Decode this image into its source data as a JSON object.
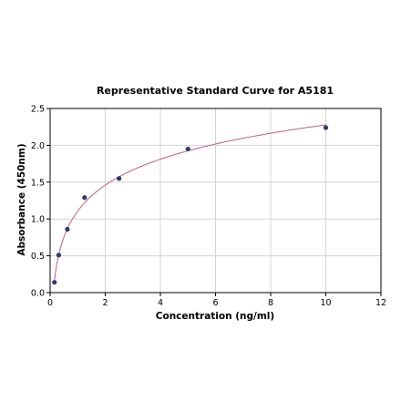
{
  "chart_data": {
    "type": "scatter",
    "title": "Representative Standard Curve for A5181",
    "xlabel": "Concentration (ng/ml)",
    "ylabel": "Absorbance (450nm)",
    "xlim": [
      0,
      12
    ],
    "ylim": [
      0,
      2.5
    ],
    "xticks": [
      0,
      2,
      4,
      6,
      8,
      10,
      12
    ],
    "yticks": [
      0.0,
      0.5,
      1.0,
      1.5,
      2.0,
      2.5
    ],
    "xtick_labels": [
      "0",
      "2",
      "4",
      "6",
      "8",
      "10",
      "12"
    ],
    "ytick_labels": [
      "0.0",
      "0.5",
      "1.0",
      "1.5",
      "2.0",
      "2.5"
    ],
    "grid": true,
    "series": [
      {
        "x": [
          0.156,
          0.3125,
          0.625,
          1.25,
          2.5,
          5,
          10
        ],
        "y": [
          0.14,
          0.51,
          0.86,
          1.29,
          1.55,
          1.95,
          2.24
        ],
        "fit": "logarithmic",
        "point_color": "#2e3b6b",
        "line_color": "#c06080"
      }
    ]
  }
}
